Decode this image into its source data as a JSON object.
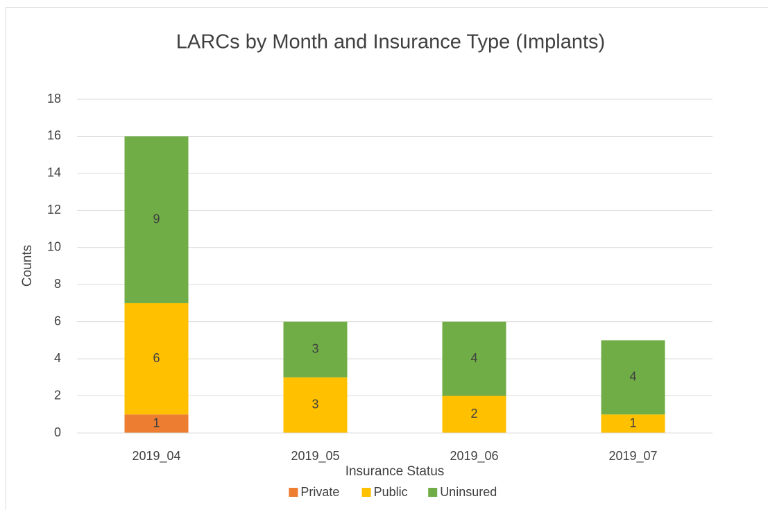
{
  "chart_data": {
    "type": "bar",
    "stacked": true,
    "title": "LARCs by Month and Insurance Type (Implants)",
    "x_label": "Insurance Status",
    "y_label": "Counts",
    "categories": [
      "2019_04",
      "2019_05",
      "2019_06",
      "2019_07"
    ],
    "series": [
      {
        "name": "Private",
        "color": "#ed7d31",
        "values": [
          1,
          null,
          null,
          null
        ]
      },
      {
        "name": "Public",
        "color": "#ffc000",
        "values": [
          6,
          3,
          2,
          1
        ]
      },
      {
        "name": "Uninsured",
        "color": "#70ad47",
        "values": [
          9,
          3,
          4,
          4
        ]
      }
    ],
    "ylim": [
      0,
      18
    ],
    "yticks": [
      0,
      2,
      4,
      6,
      8,
      10,
      12,
      14,
      16,
      18
    ],
    "grid": true,
    "legend": "bottom"
  }
}
